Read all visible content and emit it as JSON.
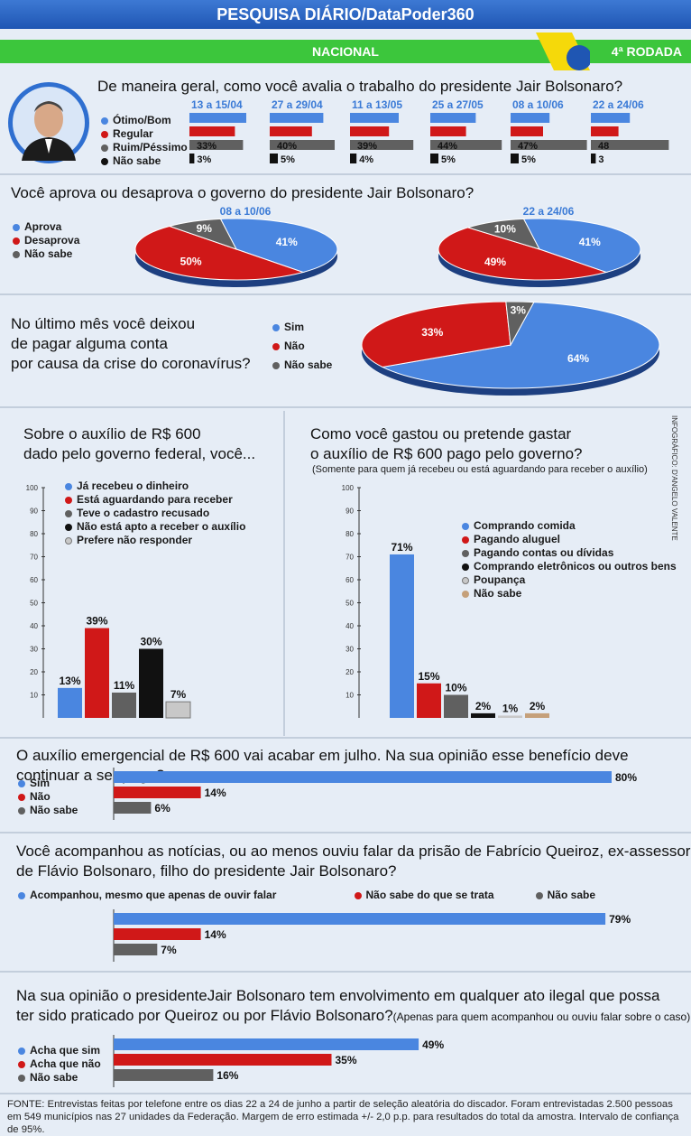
{
  "header": {
    "title": "PESQUISA DIÁRIO/DataPoder360",
    "scope": "NACIONAL",
    "round": "4ª RODADA"
  },
  "colors": {
    "blue": "#4a86e0",
    "red": "#d01818",
    "gray": "#606060",
    "black": "#111111",
    "lightgray": "#c8c8c8",
    "tan": "#c5a07a"
  },
  "q1": {
    "question": "De maneira geral, como você avalia o trabalho do presidente Jair Bolsonaro?",
    "legend": [
      "Ótimo/Bom",
      "Regular",
      "Ruim/Péssimo",
      "Não sabe"
    ]
  },
  "q2": {
    "question": "Você aprova ou desaprova o governo do presidente Jair Bolsonaro?",
    "legend": [
      "Aprova",
      "Desaprova",
      "Não sabe"
    ]
  },
  "q3": {
    "question_lines": [
      "No último mês você deixou",
      "de pagar alguma conta",
      "por causa da crise do coronavírus?"
    ],
    "legend": [
      "Sim",
      "Não",
      "Não sabe"
    ]
  },
  "q4": {
    "question_lines": [
      "Sobre o auxílio de R$ 600",
      "dado pelo governo federal, você..."
    ],
    "legend": [
      "Já recebeu o dinheiro",
      "Está aguardando para receber",
      "Teve o cadastro recusado",
      "Não está apto a receber o auxílio",
      "Prefere não responder"
    ]
  },
  "q5": {
    "question_lines": [
      "Como você gastou ou pretende gastar",
      "o auxílio de R$ 600 pago pelo governo?"
    ],
    "note": "(Somente para quem já recebeu ou está aguardando para receber o auxílio)",
    "legend": [
      "Comprando comida",
      "Pagando aluguel",
      "Pagando contas ou dívidas",
      "Comprando eletrônicos ou outros bens",
      "Poupança",
      "Não sabe"
    ]
  },
  "q6": {
    "question": "O auxílio emergencial de R$ 600 vai acabar em julho. Na sua opinião esse benefício deve continuar a ser pago?",
    "legend": [
      "Sim",
      "Não",
      "Não sabe"
    ]
  },
  "q7": {
    "question_lines": [
      "Você acompanhou as notícias, ou ao menos ouviu falar da prisão de Fabrício Queiroz, ex-assessor",
      "de Flávio Bolsonaro, filho do presidente Jair Bolsonaro?"
    ],
    "legend": [
      "Acompanhou, mesmo que apenas de ouvir falar",
      "Não sabe do que se trata",
      "Não sabe"
    ]
  },
  "q8": {
    "question_line1": "Na sua opinião o presidenteJair Bolsonaro tem envolvimento em qualquer ato ilegal que possa",
    "question_line2": "ter sido praticado por Queiroz ou por Flávio Bolsonaro?",
    "note": "(Apenas para quem acompanhou ou ouviu falar sobre o caso)",
    "legend": [
      "Acha que sim",
      "Acha que não",
      "Não sabe"
    ]
  },
  "credit": "INFOGRÁFICO: D'ANGELO VALENTE",
  "footer": "FONTE: Entrevistas feitas por telefone entre os dias 22 a 24 de junho a partir de seleção aleatória do discador. Foram entrevistadas 2.500 pessoas em 549 municípios nas 27 unidades da Federação. Margem de erro estimada +/- 2,0 p.p. para resultados do total da amostra. Intervalo de confiança de 95%.",
  "chart_data": [
    {
      "id": "avaliacao",
      "type": "bar",
      "categories": [
        "13 a 15/04",
        "27 a 29/04",
        "11 a 13/05",
        "25 a 27/05",
        "08 a 10/06",
        "22 a 24/06"
      ],
      "series": [
        {
          "name": "Ótimo/Bom",
          "values": [
            35,
            33,
            30,
            28,
            24,
            24
          ]
        },
        {
          "name": "Regular",
          "values": [
            28,
            26,
            24,
            22,
            20,
            17
          ]
        },
        {
          "name": "Ruim/Péssimo",
          "values": [
            33,
            40,
            39,
            44,
            47,
            48
          ]
        },
        {
          "name": "Não sabe",
          "values": [
            3,
            5,
            4,
            5,
            5,
            3
          ]
        }
      ],
      "labels": {
        "Ruim/Péssimo": [
          "33%",
          "40%",
          "39%",
          "44%",
          "47%",
          "48"
        ],
        "Não sabe": [
          "3%",
          "5%",
          "4%",
          "5%",
          "5%",
          "3"
        ]
      }
    },
    {
      "id": "aprova",
      "type": "pie",
      "pies": [
        {
          "period": "08 a 10/06",
          "slices": [
            {
              "name": "Aprova",
              "value": 41
            },
            {
              "name": "Desaprova",
              "value": 50
            },
            {
              "name": "Não sabe",
              "value": 9
            }
          ]
        },
        {
          "period": "22 a 24/06",
          "slices": [
            {
              "name": "Aprova",
              "value": 41
            },
            {
              "name": "Desaprova",
              "value": 49
            },
            {
              "name": "Não sabe",
              "value": 10
            }
          ]
        }
      ]
    },
    {
      "id": "contas",
      "type": "pie",
      "slices": [
        {
          "name": "Sim",
          "value": 64
        },
        {
          "name": "Não",
          "value": 33
        },
        {
          "name": "Não sabe",
          "value": 3
        }
      ]
    },
    {
      "id": "auxilio",
      "type": "bar",
      "categories": [
        "Já recebeu o dinheiro",
        "Está aguardando para receber",
        "Teve o cadastro recusado",
        "Não está apto a receber o auxílio",
        "Prefere não responder"
      ],
      "values": [
        13,
        39,
        11,
        30,
        7
      ],
      "labels": [
        "13%",
        "39%",
        "11%",
        "30%",
        "7%"
      ],
      "ylim": [
        0,
        100
      ],
      "yticks": [
        10,
        20,
        30,
        40,
        50,
        60,
        70,
        80,
        90,
        100
      ]
    },
    {
      "id": "gasto",
      "type": "bar",
      "categories": [
        "Comprando comida",
        "Pagando aluguel",
        "Pagando contas ou dívidas",
        "Comprando eletrônicos ou outros bens",
        "Poupança",
        "Não sabe"
      ],
      "values": [
        71,
        15,
        10,
        2,
        1,
        2
      ],
      "labels": [
        "71%",
        "15%",
        "10%",
        "2%",
        "1%",
        "2%"
      ],
      "ylim": [
        0,
        100
      ],
      "yticks": [
        10,
        20,
        30,
        40,
        50,
        60,
        70,
        80,
        90,
        100
      ]
    },
    {
      "id": "continuar",
      "type": "bar",
      "categories": [
        "Sim",
        "Não",
        "Não sabe"
      ],
      "values": [
        80,
        14,
        6
      ],
      "labels": [
        "80%",
        "14%",
        "6%"
      ]
    },
    {
      "id": "queiroz",
      "type": "bar",
      "categories": [
        "Acompanhou, mesmo que apenas de ouvir falar",
        "Não sabe do que se trata",
        "Não sabe"
      ],
      "values": [
        79,
        14,
        7
      ],
      "labels": [
        "79%",
        "14%",
        "7%"
      ]
    },
    {
      "id": "envolvimento",
      "type": "bar",
      "categories": [
        "Acha que sim",
        "Acha que não",
        "Não sabe"
      ],
      "values": [
        49,
        35,
        16
      ],
      "labels": [
        "49%",
        "35%",
        "16%"
      ]
    }
  ]
}
